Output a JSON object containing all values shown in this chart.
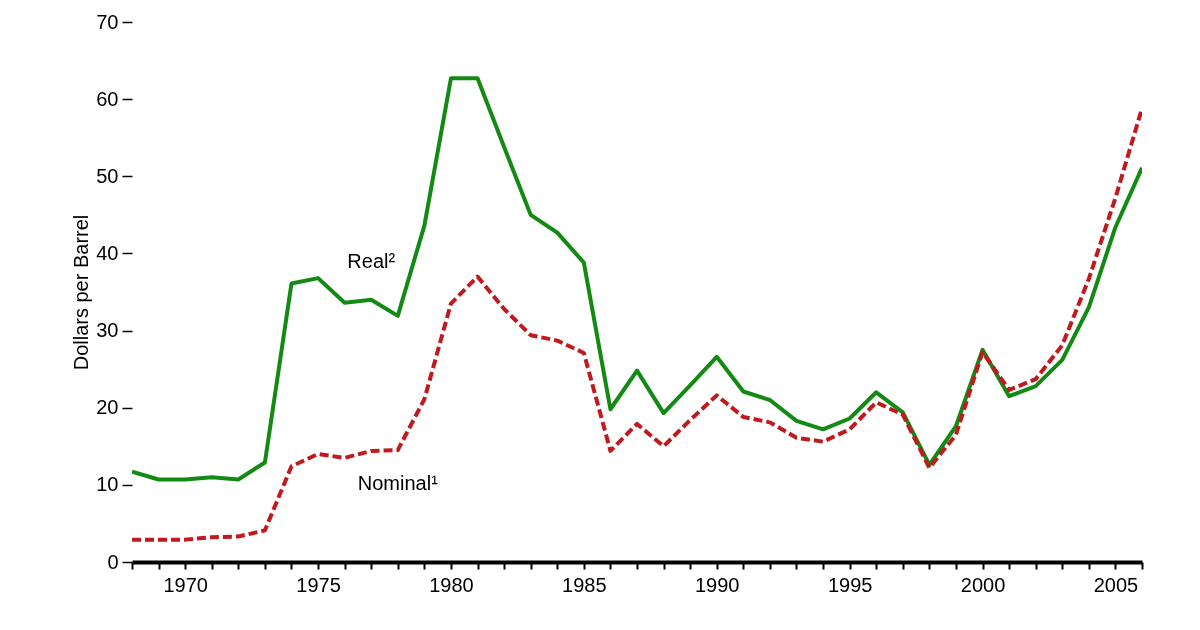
{
  "chart_data": {
    "type": "line",
    "ylabel": "Dollars per Barrel",
    "x": [
      1968,
      1969,
      1970,
      1971,
      1972,
      1973,
      1974,
      1975,
      1976,
      1977,
      1978,
      1979,
      1980,
      1981,
      1982,
      1983,
      1984,
      1985,
      1986,
      1987,
      1988,
      1989,
      1990,
      1991,
      1992,
      1993,
      1994,
      1995,
      1996,
      1997,
      1998,
      1999,
      2000,
      2001,
      2002,
      2003,
      2004,
      2005,
      2006
    ],
    "series": [
      {
        "name": "Real²",
        "color": "#138a13",
        "line_style": "solid",
        "values": [
          11.7,
          10.7,
          10.7,
          11.0,
          10.7,
          12.9,
          36.1,
          36.8,
          33.6,
          34.0,
          31.9,
          43.6,
          62.7,
          62.7,
          53.8,
          45.0,
          42.7,
          38.8,
          19.8,
          24.8,
          19.3,
          22.9,
          26.6,
          22.1,
          21.0,
          18.3,
          17.2,
          18.6,
          22.0,
          19.4,
          12.6,
          17.6,
          27.5,
          21.5,
          22.8,
          26.2,
          33.0,
          43.4,
          51.1
        ]
      },
      {
        "name": "Nominal¹",
        "color": "#c0191e",
        "line_style": "dashed",
        "values": [
          2.9,
          2.9,
          2.9,
          3.2,
          3.3,
          4.1,
          12.4,
          14.0,
          13.5,
          14.4,
          14.5,
          21.1,
          33.5,
          37.0,
          32.8,
          29.4,
          28.7,
          27.1,
          14.4,
          17.9,
          15.0,
          18.4,
          21.6,
          18.8,
          18.1,
          16.1,
          15.6,
          17.2,
          20.7,
          19.1,
          12.2,
          16.5,
          27.2,
          22.3,
          23.7,
          28.1,
          36.7,
          47.2,
          58.8
        ]
      }
    ],
    "xlim": [
      1968,
      2006
    ],
    "xticks": [
      {
        "value": 1968,
        "label": null
      },
      {
        "value": 1969,
        "label": null
      },
      1970,
      {
        "value": 1971,
        "label": null
      },
      {
        "value": 1972,
        "label": null
      },
      {
        "value": 1973,
        "label": null
      },
      {
        "value": 1974,
        "label": null
      },
      1975,
      {
        "value": 1976,
        "label": null
      },
      {
        "value": 1977,
        "label": null
      },
      {
        "value": 1978,
        "label": null
      },
      {
        "value": 1979,
        "label": null
      },
      1980,
      {
        "value": 1981,
        "label": null
      },
      {
        "value": 1982,
        "label": null
      },
      {
        "value": 1983,
        "label": null
      },
      {
        "value": 1984,
        "label": null
      },
      1985,
      {
        "value": 1986,
        "label": null
      },
      {
        "value": 1987,
        "label": null
      },
      {
        "value": 1988,
        "label": null
      },
      {
        "value": 1989,
        "label": null
      },
      1990,
      {
        "value": 1991,
        "label": null
      },
      {
        "value": 1992,
        "label": null
      },
      {
        "value": 1993,
        "label": null
      },
      {
        "value": 1994,
        "label": null
      },
      1995,
      {
        "value": 1996,
        "label": null
      },
      {
        "value": 1997,
        "label": null
      },
      {
        "value": 1998,
        "label": null
      },
      {
        "value": 1999,
        "label": null
      },
      2000,
      {
        "value": 2001,
        "label": null
      },
      {
        "value": 2002,
        "label": null
      },
      {
        "value": 2003,
        "label": null
      },
      {
        "value": 2004,
        "label": null
      },
      2005,
      {
        "value": 2006,
        "label": null
      }
    ],
    "ylim": [
      0,
      70
    ],
    "yticks": [
      0,
      10,
      20,
      30,
      40,
      50,
      60,
      70
    ],
    "marker": "none"
  }
}
